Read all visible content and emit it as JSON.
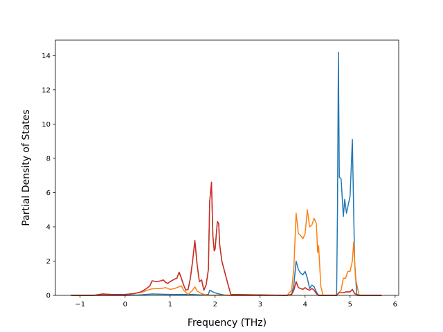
{
  "chart_data": {
    "type": "line",
    "title": "",
    "xlabel": "Frequency (THz)",
    "ylabel": "Partial Density of States",
    "xlim": [
      -1.55,
      6.08
    ],
    "ylim": [
      0,
      14.9
    ],
    "xticks": [
      -1,
      0,
      1,
      2,
      3,
      4,
      5,
      6
    ],
    "yticks": [
      0,
      2,
      4,
      6,
      8,
      10,
      12,
      14
    ],
    "xtick_labels": [
      "−1",
      "0",
      "1",
      "2",
      "3",
      "4",
      "5",
      "6"
    ],
    "ytick_labels": [
      "0",
      "2",
      "4",
      "6",
      "8",
      "10",
      "12",
      "14"
    ],
    "grid": false,
    "legend": "none",
    "series": [
      {
        "color": "#1f77b4",
        "points": [
          [
            -1.2,
            0
          ],
          [
            0.0,
            0
          ],
          [
            0.3,
            0.02
          ],
          [
            0.6,
            0.08
          ],
          [
            0.9,
            0.06
          ],
          [
            1.2,
            0.05
          ],
          [
            1.5,
            0.05
          ],
          [
            1.7,
            0.02
          ],
          [
            1.85,
            0.05
          ],
          [
            1.88,
            0.3
          ],
          [
            1.95,
            0.2
          ],
          [
            2.05,
            0.1
          ],
          [
            2.2,
            0.02
          ],
          [
            2.4,
            0
          ],
          [
            3.6,
            0
          ],
          [
            3.7,
            0.05
          ],
          [
            3.75,
            0.6
          ],
          [
            3.8,
            2.0
          ],
          [
            3.85,
            1.5
          ],
          [
            3.9,
            1.3
          ],
          [
            3.95,
            1.2
          ],
          [
            4.0,
            1.4
          ],
          [
            4.05,
            1.0
          ],
          [
            4.1,
            0.4
          ],
          [
            4.15,
            0.6
          ],
          [
            4.2,
            0.5
          ],
          [
            4.25,
            0.2
          ],
          [
            4.3,
            0
          ],
          [
            4.7,
            0
          ],
          [
            4.72,
            5.0
          ],
          [
            4.74,
            14.2
          ],
          [
            4.76,
            6.9
          ],
          [
            4.8,
            6.8
          ],
          [
            4.85,
            4.6
          ],
          [
            4.88,
            5.6
          ],
          [
            4.92,
            4.8
          ],
          [
            5.0,
            5.8
          ],
          [
            5.05,
            9.1
          ],
          [
            5.1,
            2.0
          ],
          [
            5.15,
            0
          ],
          [
            5.7,
            0
          ]
        ]
      },
      {
        "color": "#ff7f0e",
        "points": [
          [
            -1.2,
            0
          ],
          [
            -0.6,
            0
          ],
          [
            0.0,
            0.05
          ],
          [
            0.2,
            0.1
          ],
          [
            0.4,
            0.2
          ],
          [
            0.55,
            0.35
          ],
          [
            0.65,
            0.4
          ],
          [
            0.8,
            0.4
          ],
          [
            0.9,
            0.45
          ],
          [
            1.0,
            0.35
          ],
          [
            1.1,
            0.4
          ],
          [
            1.2,
            0.5
          ],
          [
            1.25,
            0.55
          ],
          [
            1.3,
            0.3
          ],
          [
            1.4,
            0.05
          ],
          [
            1.5,
            0.3
          ],
          [
            1.55,
            0.5
          ],
          [
            1.6,
            0.25
          ],
          [
            1.7,
            0.1
          ],
          [
            1.8,
            0.02
          ],
          [
            2.4,
            0
          ],
          [
            3.6,
            0
          ],
          [
            3.7,
            0.3
          ],
          [
            3.75,
            1.6
          ],
          [
            3.8,
            4.8
          ],
          [
            3.85,
            3.6
          ],
          [
            3.9,
            3.5
          ],
          [
            3.95,
            3.3
          ],
          [
            4.0,
            3.6
          ],
          [
            4.05,
            5.0
          ],
          [
            4.1,
            4.0
          ],
          [
            4.15,
            4.1
          ],
          [
            4.2,
            4.5
          ],
          [
            4.25,
            4.2
          ],
          [
            4.28,
            2.5
          ],
          [
            4.3,
            2.9
          ],
          [
            4.35,
            0.5
          ],
          [
            4.4,
            0
          ],
          [
            4.7,
            0
          ],
          [
            4.8,
            0.3
          ],
          [
            4.85,
            1.0
          ],
          [
            4.9,
            1.0
          ],
          [
            4.95,
            1.4
          ],
          [
            5.0,
            1.4
          ],
          [
            5.05,
            2.0
          ],
          [
            5.08,
            3.1
          ],
          [
            5.12,
            1.0
          ],
          [
            5.2,
            0
          ],
          [
            5.7,
            0
          ]
        ]
      },
      {
        "color": "#2ca02c",
        "points": [
          [
            -1.2,
            0
          ],
          [
            -0.7,
            0
          ],
          [
            -0.5,
            0.08
          ],
          [
            -0.3,
            0.05
          ],
          [
            0.0,
            0.05
          ],
          [
            0.2,
            0.1
          ],
          [
            0.35,
            0.2
          ],
          [
            0.45,
            0.35
          ],
          [
            0.55,
            0.55
          ],
          [
            0.6,
            0.85
          ],
          [
            0.7,
            0.8
          ],
          [
            0.8,
            0.85
          ],
          [
            0.85,
            0.9
          ],
          [
            0.9,
            0.75
          ],
          [
            0.95,
            0.7
          ],
          [
            1.0,
            0.8
          ],
          [
            1.1,
            0.95
          ],
          [
            1.15,
            1.0
          ],
          [
            1.2,
            1.35
          ],
          [
            1.25,
            1.0
          ],
          [
            1.3,
            0.6
          ],
          [
            1.35,
            0.3
          ],
          [
            1.4,
            0.35
          ],
          [
            1.45,
            1.0
          ],
          [
            1.5,
            2.0
          ],
          [
            1.55,
            3.2
          ],
          [
            1.6,
            1.8
          ],
          [
            1.65,
            0.8
          ],
          [
            1.7,
            0.9
          ],
          [
            1.75,
            0.3
          ],
          [
            1.8,
            0.6
          ],
          [
            1.85,
            1.5
          ],
          [
            1.88,
            5.5
          ],
          [
            1.92,
            6.6
          ],
          [
            1.95,
            3.5
          ],
          [
            1.98,
            2.6
          ],
          [
            2.0,
            2.7
          ],
          [
            2.05,
            4.3
          ],
          [
            2.08,
            4.2
          ],
          [
            2.1,
            3.0
          ],
          [
            2.15,
            2.0
          ],
          [
            2.2,
            1.5
          ],
          [
            2.25,
            1.0
          ],
          [
            2.3,
            0.5
          ],
          [
            2.35,
            0.05
          ],
          [
            3.6,
            0
          ],
          [
            3.7,
            0.05
          ],
          [
            3.75,
            0.3
          ],
          [
            3.8,
            0.8
          ],
          [
            3.85,
            0.45
          ],
          [
            3.9,
            0.4
          ],
          [
            3.95,
            0.35
          ],
          [
            4.0,
            0.45
          ],
          [
            4.05,
            0.35
          ],
          [
            4.1,
            0.3
          ],
          [
            4.15,
            0.4
          ],
          [
            4.2,
            0.3
          ],
          [
            4.25,
            0.1
          ],
          [
            4.3,
            0
          ],
          [
            4.7,
            0
          ],
          [
            4.75,
            0.15
          ],
          [
            4.85,
            0.15
          ],
          [
            4.9,
            0.2
          ],
          [
            4.95,
            0.2
          ],
          [
            5.0,
            0.2
          ],
          [
            5.05,
            0.35
          ],
          [
            5.1,
            0.1
          ],
          [
            5.2,
            0
          ],
          [
            5.7,
            0
          ]
        ]
      },
      {
        "color": "#d62728",
        "points": [
          [
            -1.2,
            0
          ],
          [
            -0.7,
            0
          ],
          [
            -0.5,
            0.08
          ],
          [
            -0.3,
            0.05
          ],
          [
            0.0,
            0.05
          ],
          [
            0.2,
            0.1
          ],
          [
            0.35,
            0.2
          ],
          [
            0.45,
            0.35
          ],
          [
            0.55,
            0.55
          ],
          [
            0.6,
            0.85
          ],
          [
            0.7,
            0.8
          ],
          [
            0.8,
            0.85
          ],
          [
            0.85,
            0.9
          ],
          [
            0.9,
            0.75
          ],
          [
            0.95,
            0.7
          ],
          [
            1.0,
            0.8
          ],
          [
            1.1,
            0.95
          ],
          [
            1.15,
            1.0
          ],
          [
            1.2,
            1.35
          ],
          [
            1.25,
            1.0
          ],
          [
            1.3,
            0.6
          ],
          [
            1.35,
            0.3
          ],
          [
            1.4,
            0.35
          ],
          [
            1.45,
            1.0
          ],
          [
            1.5,
            2.0
          ],
          [
            1.55,
            3.2
          ],
          [
            1.6,
            1.8
          ],
          [
            1.65,
            0.8
          ],
          [
            1.7,
            0.9
          ],
          [
            1.75,
            0.3
          ],
          [
            1.8,
            0.6
          ],
          [
            1.85,
            1.5
          ],
          [
            1.88,
            5.5
          ],
          [
            1.92,
            6.6
          ],
          [
            1.95,
            3.5
          ],
          [
            1.98,
            2.6
          ],
          [
            2.0,
            2.7
          ],
          [
            2.05,
            4.3
          ],
          [
            2.08,
            4.2
          ],
          [
            2.1,
            3.0
          ],
          [
            2.15,
            2.0
          ],
          [
            2.2,
            1.5
          ],
          [
            2.25,
            1.0
          ],
          [
            2.3,
            0.5
          ],
          [
            2.35,
            0.05
          ],
          [
            3.6,
            0
          ],
          [
            3.7,
            0.05
          ],
          [
            3.75,
            0.3
          ],
          [
            3.8,
            0.8
          ],
          [
            3.85,
            0.45
          ],
          [
            3.9,
            0.4
          ],
          [
            3.95,
            0.35
          ],
          [
            4.0,
            0.45
          ],
          [
            4.05,
            0.35
          ],
          [
            4.1,
            0.3
          ],
          [
            4.15,
            0.4
          ],
          [
            4.2,
            0.3
          ],
          [
            4.25,
            0.1
          ],
          [
            4.3,
            0
          ],
          [
            4.7,
            0
          ],
          [
            4.75,
            0.15
          ],
          [
            4.85,
            0.15
          ],
          [
            4.9,
            0.2
          ],
          [
            4.95,
            0.2
          ],
          [
            5.0,
            0.2
          ],
          [
            5.05,
            0.35
          ],
          [
            5.1,
            0.1
          ],
          [
            5.2,
            0
          ],
          [
            5.7,
            0
          ]
        ]
      }
    ]
  }
}
